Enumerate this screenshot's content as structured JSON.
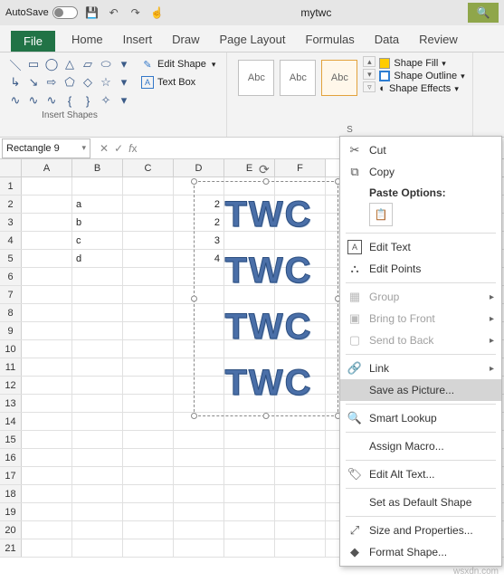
{
  "titlebar": {
    "autosave_label": "AutoSave",
    "autosave_state": "Off",
    "doc_title": "mytwc"
  },
  "tabs": {
    "file": "File",
    "home": "Home",
    "insert": "Insert",
    "draw": "Draw",
    "page_layout": "Page Layout",
    "formulas": "Formulas",
    "data": "Data",
    "review": "Review"
  },
  "ribbon": {
    "insert_shapes_label": "Insert Shapes",
    "edit_shape": "Edit Shape",
    "text_box": "Text Box",
    "shape_styles_label": "Shape Styles",
    "style_sample": "Abc",
    "shape_fill": "Shape Fill",
    "shape_outline": "Shape Outline",
    "shape_effects": "Shape Effects"
  },
  "namebox": "Rectangle 9",
  "columns": [
    "A",
    "B",
    "C",
    "D",
    "E",
    "F"
  ],
  "rows": [
    {
      "n": 1,
      "cells": [
        "",
        "",
        "",
        "",
        "",
        ""
      ]
    },
    {
      "n": 2,
      "cells": [
        "",
        "a",
        "",
        "2",
        "",
        ""
      ]
    },
    {
      "n": 3,
      "cells": [
        "",
        "b",
        "",
        "2",
        "",
        ""
      ]
    },
    {
      "n": 4,
      "cells": [
        "",
        "c",
        "",
        "3",
        "",
        ""
      ]
    },
    {
      "n": 5,
      "cells": [
        "",
        "d",
        "",
        "4",
        "",
        ""
      ]
    },
    {
      "n": 6,
      "cells": [
        "",
        "",
        "",
        "",
        "",
        ""
      ]
    },
    {
      "n": 7,
      "cells": [
        "",
        "",
        "",
        "",
        "",
        ""
      ]
    },
    {
      "n": 8,
      "cells": [
        "",
        "",
        "",
        "",
        "",
        ""
      ]
    },
    {
      "n": 9,
      "cells": [
        "",
        "",
        "",
        "",
        "",
        ""
      ]
    },
    {
      "n": 10,
      "cells": [
        "",
        "",
        "",
        "",
        "",
        ""
      ]
    },
    {
      "n": 11,
      "cells": [
        "",
        "",
        "",
        "",
        "",
        ""
      ]
    },
    {
      "n": 12,
      "cells": [
        "",
        "",
        "",
        "",
        "",
        ""
      ]
    },
    {
      "n": 13,
      "cells": [
        "",
        "",
        "",
        "",
        "",
        ""
      ]
    },
    {
      "n": 14,
      "cells": [
        "",
        "",
        "",
        "",
        "",
        ""
      ]
    },
    {
      "n": 15,
      "cells": [
        "",
        "",
        "",
        "",
        "",
        ""
      ]
    },
    {
      "n": 16,
      "cells": [
        "",
        "",
        "",
        "",
        "",
        ""
      ]
    },
    {
      "n": 17,
      "cells": [
        "",
        "",
        "",
        "",
        "",
        ""
      ]
    },
    {
      "n": 18,
      "cells": [
        "",
        "",
        "",
        "",
        "",
        ""
      ]
    },
    {
      "n": 19,
      "cells": [
        "",
        "",
        "",
        "",
        "",
        ""
      ]
    },
    {
      "n": 20,
      "cells": [
        "",
        "",
        "",
        "",
        "",
        ""
      ]
    },
    {
      "n": 21,
      "cells": [
        "",
        "",
        "",
        "",
        "",
        ""
      ]
    }
  ],
  "wordart": {
    "text": "TWC",
    "color": "#4a6fa8",
    "stroke": "#2d4f80",
    "count": 4
  },
  "context_menu": {
    "cut": "Cut",
    "copy": "Copy",
    "paste_options": "Paste Options:",
    "edit_text": "Edit Text",
    "edit_points": "Edit Points",
    "group": "Group",
    "bring_to_front": "Bring to Front",
    "send_to_back": "Send to Back",
    "link": "Link",
    "save_as_picture": "Save as Picture...",
    "smart_lookup": "Smart Lookup",
    "assign_macro": "Assign Macro...",
    "edit_alt_text": "Edit Alt Text...",
    "set_as_default_shape": "Set as Default Shape",
    "size_and_properties": "Size and Properties...",
    "format_shape": "Format Shape..."
  },
  "watermark": "wsxdn.com"
}
